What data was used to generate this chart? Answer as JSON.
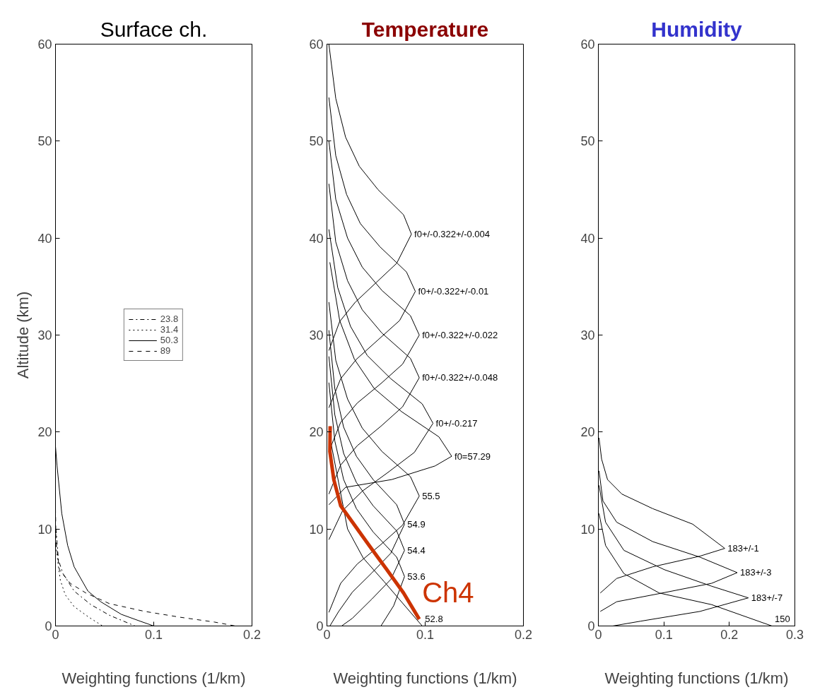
{
  "chart_data": [
    {
      "type": "line",
      "title": "Surface ch.",
      "xlabel": "Weighting functions (1/km)",
      "ylabel": "Altitude (km)",
      "xlim": [
        0,
        0.2
      ],
      "ylim": [
        0,
        60
      ],
      "xticks": [
        0,
        0.1,
        0.2
      ],
      "yticks": [
        0,
        10,
        20,
        30,
        40,
        50,
        60
      ],
      "legend": "center",
      "series": [
        {
          "name": "23.8",
          "color": "#000000",
          "line_style": "dashdot",
          "x": [
            0.0005,
            0.003,
            0.0076,
            0.019,
            0.036,
            0.055,
            0.081
          ],
          "values": [
            10.0,
            6.8,
            5.4,
            3.6,
            2.2,
            1.1,
            0
          ]
        },
        {
          "name": "31.4",
          "color": "#000000",
          "line_style": "dotted",
          "x": [
            0.0005,
            0.003,
            0.005,
            0.01,
            0.019,
            0.034,
            0.048
          ],
          "values": [
            8.3,
            6.1,
            4.7,
            3.2,
            2.0,
            0.9,
            0
          ]
        },
        {
          "name": "50.3",
          "color": "#000000",
          "line_style": "solid",
          "x": [
            0,
            0.0016,
            0.0064,
            0.0124,
            0.019,
            0.033,
            0.046,
            0.067,
            0.086,
            0.1
          ],
          "values": [
            18.5,
            16.5,
            11.6,
            8.3,
            6.1,
            3.6,
            2.5,
            1.2,
            0.5,
            0
          ]
        },
        {
          "name": "89",
          "color": "#000000",
          "line_style": "dashed",
          "x": [
            0,
            0.0005,
            0.004,
            0.015,
            0.031,
            0.055,
            0.091,
            0.127,
            0.162,
            0.183
          ],
          "values": [
            12.1,
            8.7,
            5.8,
            4.4,
            3.4,
            2.3,
            1.5,
            0.9,
            0.4,
            0
          ]
        }
      ]
    },
    {
      "type": "line",
      "title": "Temperature",
      "xlabel": "Weighting functions (1/km)",
      "xlim": [
        0,
        0.2
      ],
      "ylim": [
        0,
        60
      ],
      "xticks": [
        0,
        0.1,
        0.2
      ],
      "yticks": [
        0,
        10,
        20,
        30,
        40,
        50,
        60
      ],
      "series": [
        {
          "name": "f0+/-0.322+/-0.004",
          "color": "#000000",
          "x": [
            0.002,
            0.013,
            0.029,
            0.05,
            0.071,
            0.086,
            0.078,
            0.052,
            0.033,
            0.019,
            0.009,
            0.002
          ],
          "values": [
            28.4,
            31.4,
            33.4,
            35.4,
            37.4,
            40.4,
            42.4,
            45,
            47.4,
            50.4,
            54.4,
            60
          ]
        },
        {
          "name": "f0+/-0.322+/-0.01",
          "color": "#000000",
          "x": [
            0.002,
            0.014,
            0.03,
            0.052,
            0.074,
            0.09,
            0.081,
            0.054,
            0.034,
            0.02,
            0.009,
            0.002
          ],
          "values": [
            22.5,
            25.5,
            27.5,
            29.5,
            31.5,
            34.5,
            36.5,
            39.1,
            41.5,
            44.5,
            48.5,
            54.5
          ]
        },
        {
          "name": "f0+/-0.322+/-0.022",
          "color": "#000000",
          "x": [
            0.002,
            0.014,
            0.031,
            0.055,
            0.077,
            0.094,
            0.085,
            0.056,
            0.036,
            0.021,
            0.009,
            0.002
          ],
          "values": [
            18,
            21,
            23,
            25,
            27,
            30,
            32,
            34.6,
            37,
            40,
            44,
            50
          ]
        },
        {
          "name": "f0+/-0.322+/-0.048",
          "color": "#000000",
          "x": [
            0.002,
            0.014,
            0.031,
            0.055,
            0.077,
            0.094,
            0.085,
            0.056,
            0.036,
            0.021,
            0.009,
            0.002
          ],
          "values": [
            13.6,
            16.6,
            18.6,
            20.6,
            22.6,
            25.6,
            27.6,
            30.2,
            32.6,
            35.6,
            39.6,
            45.6
          ]
        },
        {
          "name": "f0+/-0.217",
          "color": "#000000",
          "x": [
            0.002,
            0.016,
            0.036,
            0.063,
            0.089,
            0.108,
            0.097,
            0.065,
            0.041,
            0.024,
            0.011,
            0.002
          ],
          "values": [
            8.9,
            11.9,
            13.9,
            15.9,
            17.9,
            20.9,
            22.9,
            25.5,
            27.9,
            30.9,
            34.9,
            40.9
          ]
        },
        {
          "name": "f0=57.29",
          "color": "#000000",
          "x": [
            0.002,
            0.019,
            0.066,
            0.11,
            0.127,
            0.114,
            0.076,
            0.048,
            0.028,
            0.013,
            0.003
          ],
          "values": [
            12.5,
            14.3,
            15.1,
            16.5,
            17.5,
            19.5,
            22.1,
            24.5,
            27.5,
            31.5,
            37.5
          ]
        },
        {
          "name": "55.5",
          "color": "#000000",
          "x": [
            0.002,
            0.014,
            0.031,
            0.055,
            0.077,
            0.094,
            0.085,
            0.056,
            0.036,
            0.021,
            0.009,
            0.002
          ],
          "values": [
            1.4,
            4.4,
            6.4,
            8.4,
            10.4,
            13.4,
            15.4,
            18,
            20.4,
            23.4,
            27.4,
            33.4
          ]
        },
        {
          "name": "54.9",
          "color": "#000000",
          "x": [
            0.003,
            0.012,
            0.026,
            0.046,
            0.065,
            0.079,
            0.071,
            0.047,
            0.03,
            0.017,
            0.008,
            0.002
          ],
          "values": [
            0,
            1.5,
            3.5,
            5.5,
            7.5,
            10.5,
            12.5,
            15.1,
            17.5,
            20.5,
            24.5,
            30.5
          ]
        },
        {
          "name": "54.4",
          "color": "#000000",
          "x": [
            0.015,
            0.026,
            0.046,
            0.065,
            0.079,
            0.071,
            0.047,
            0.03,
            0.017,
            0.008,
            0.002
          ],
          "values": [
            0,
            0.8,
            2.8,
            4.8,
            7.8,
            9.8,
            12.4,
            14.8,
            17.8,
            21.8,
            27.8
          ]
        },
        {
          "name": "53.6",
          "color": "#000000",
          "x": [
            0.055,
            0.068,
            0.079,
            0.071,
            0.047,
            0.03,
            0.017,
            0.008,
            0.002
          ],
          "values": [
            0,
            2.1,
            5.1,
            7.1,
            9.7,
            12.1,
            15.1,
            19.1,
            25.1
          ]
        },
        {
          "name": "52.8",
          "color": "#000000",
          "x": [
            0.097,
            0.058,
            0.037,
            0.021,
            0.002
          ],
          "values": [
            0,
            4.6,
            7,
            10,
            20
          ]
        },
        {
          "name": "Ch4",
          "color": "#cc3300",
          "x": [
            0.0033,
            0.003,
            0.007,
            0.014,
            0.026,
            0.043,
            0.061,
            0.078,
            0.094
          ],
          "values": [
            20.6,
            18.0,
            15.1,
            12.4,
            10.7,
            8.3,
            5.8,
            3.4,
            0.7
          ]
        }
      ]
    },
    {
      "type": "line",
      "title": "Humidity",
      "xlabel": "Weighting functions (1/km)",
      "xlim": [
        0,
        0.3
      ],
      "ylim": [
        0,
        60
      ],
      "xticks": [
        0,
        0.1,
        0.2,
        0.3
      ],
      "yticks": [
        0,
        10,
        20,
        30,
        40,
        50,
        60
      ],
      "series": [
        {
          "name": "183+/-1",
          "color": "#000000",
          "x": [
            0.001,
            0.005,
            0.014,
            0.036,
            0.083,
            0.144,
            0.193,
            0.155,
            0.083,
            0.028,
            0.003
          ],
          "values": [
            19.4,
            17.2,
            15.1,
            13.6,
            12.1,
            10.5,
            8.0,
            7.2,
            6.1,
            4.9,
            3.4
          ]
        },
        {
          "name": "183+/-3",
          "color": "#000000",
          "x": [
            0.001,
            0.007,
            0.028,
            0.083,
            0.155,
            0.212,
            0.173,
            0.09,
            0.028,
            0.003
          ],
          "values": [
            16,
            12.9,
            10.7,
            8.7,
            7.1,
            5.5,
            4.4,
            3.3,
            2.5,
            1.5
          ]
        },
        {
          "name": "183+/-7",
          "color": "#000000",
          "x": [
            0.001,
            0.011,
            0.039,
            0.101,
            0.173,
            0.229,
            0.155,
            0.065,
            0.022
          ],
          "values": [
            14.5,
            10.7,
            7.8,
            5.8,
            4.1,
            2.9,
            1.5,
            0.5,
            0
          ]
        },
        {
          "name": "150",
          "color": "#000000",
          "x": [
            0.001,
            0.011,
            0.039,
            0.093,
            0.173,
            0.265
          ],
          "values": [
            11.6,
            8.3,
            5.4,
            3.4,
            2.2,
            0
          ]
        }
      ]
    }
  ]
}
